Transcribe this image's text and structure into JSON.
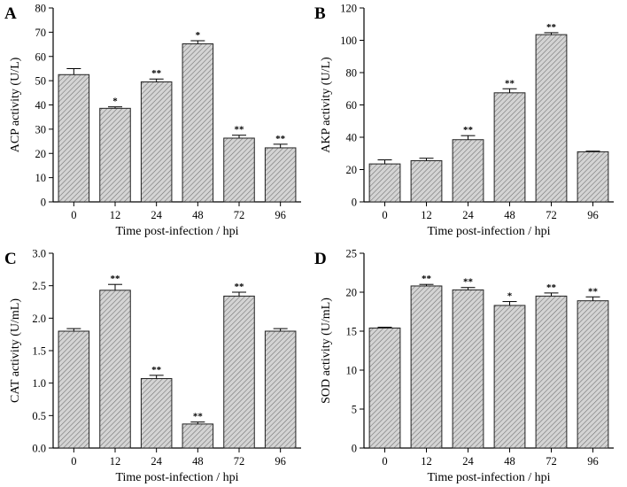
{
  "chart_data": [
    {
      "type": "bar",
      "panel": "A",
      "categories": [
        "0",
        "12",
        "24",
        "48",
        "72",
        "96"
      ],
      "values": [
        52.5,
        38.6,
        49.5,
        65.2,
        26.3,
        22.3
      ],
      "errors": [
        2.5,
        0.6,
        1.2,
        1.3,
        1.2,
        1.5
      ],
      "significance": [
        "",
        "*",
        "**",
        "*",
        "**",
        "**"
      ],
      "xlabel": "Time post-infection / hpi",
      "ylabel": "ACP activity (U/L)",
      "ylim": [
        0,
        80
      ],
      "yticks": [
        0,
        10,
        20,
        30,
        40,
        50,
        60,
        70,
        80
      ],
      "ytick_labels": [
        "0",
        "10",
        "20",
        "30",
        "40",
        "50",
        "60",
        "70",
        "80"
      ]
    },
    {
      "type": "bar",
      "panel": "B",
      "categories": [
        "0",
        "12",
        "24",
        "48",
        "72",
        "96"
      ],
      "values": [
        23.5,
        25.5,
        38.5,
        67.5,
        103.5,
        31.0
      ],
      "errors": [
        2.5,
        1.5,
        2.5,
        2.5,
        1.2,
        0.4
      ],
      "significance": [
        "",
        "",
        "**",
        "**",
        "**",
        ""
      ],
      "xlabel": "Time post-infection / hpi",
      "ylabel": "AKP activity (U/L)",
      "ylim": [
        0,
        120
      ],
      "yticks": [
        0,
        20,
        40,
        60,
        80,
        100,
        120
      ],
      "ytick_labels": [
        "0",
        "20",
        "40",
        "60",
        "80",
        "100",
        "120"
      ]
    },
    {
      "type": "bar",
      "panel": "C",
      "categories": [
        "0",
        "12",
        "24",
        "48",
        "72",
        "96"
      ],
      "values": [
        1.8,
        2.43,
        1.07,
        0.37,
        2.34,
        1.8
      ],
      "errors": [
        0.04,
        0.09,
        0.05,
        0.03,
        0.06,
        0.04
      ],
      "significance": [
        "",
        "**",
        "**",
        "**",
        "**",
        ""
      ],
      "xlabel": "Time post-infection / hpi",
      "ylabel": "CAT activity (U/mL)",
      "ylim": [
        0,
        3.0
      ],
      "yticks": [
        0,
        0.5,
        1.0,
        1.5,
        2.0,
        2.5,
        3.0
      ],
      "ytick_labels": [
        "0.0",
        "0.5",
        "1.0",
        "1.5",
        "2.0",
        "2.5",
        "3.0"
      ]
    },
    {
      "type": "bar",
      "panel": "D",
      "categories": [
        "0",
        "12",
        "24",
        "48",
        "72",
        "96"
      ],
      "values": [
        15.4,
        20.8,
        20.3,
        18.3,
        19.5,
        18.9
      ],
      "errors": [
        0.1,
        0.2,
        0.3,
        0.5,
        0.4,
        0.5
      ],
      "significance": [
        "",
        "**",
        "**",
        "*",
        "**",
        "**"
      ],
      "xlabel": "Time post-infection / hpi",
      "ylabel": "SOD activity (U/mL)",
      "ylim": [
        0,
        25
      ],
      "yticks": [
        0,
        5,
        10,
        15,
        20,
        25
      ],
      "ytick_labels": [
        "0",
        "5",
        "10",
        "15",
        "20",
        "25"
      ]
    }
  ]
}
